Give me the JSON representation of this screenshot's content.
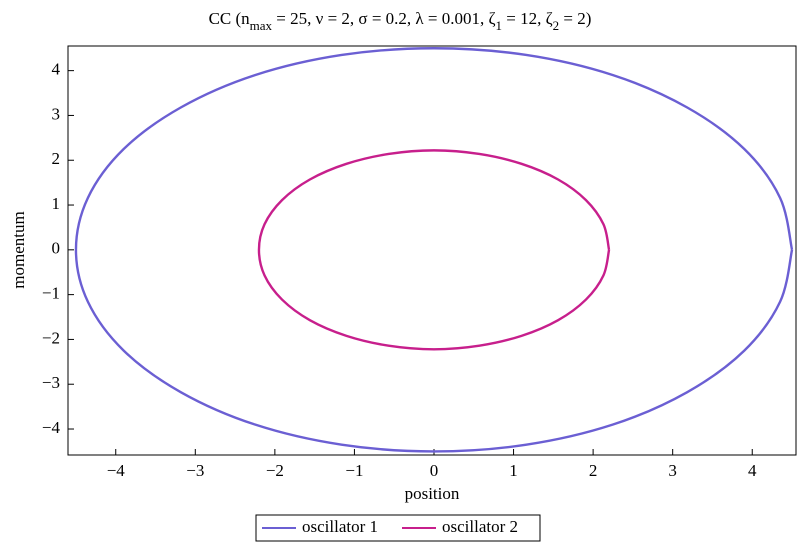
{
  "chart_data": {
    "type": "line",
    "title": [
      "CC  (n",
      "max",
      " = 25, ν = 2, σ = 0.2, λ = 0.001, ζ",
      "1",
      " = 12, ζ",
      "2",
      " = 2)"
    ],
    "x_label": "position",
    "y_label": "momentum",
    "xlim": [
      -4.6,
      4.55
    ],
    "ylim": [
      -4.58,
      4.55
    ],
    "xticks": [
      {
        "value": -4,
        "label": "−4"
      },
      {
        "value": -3,
        "label": "−3"
      },
      {
        "value": -2,
        "label": "−2"
      },
      {
        "value": -1,
        "label": "−1"
      },
      0,
      1,
      2,
      3,
      4
    ],
    "yticks": [
      {
        "value": -4,
        "label": "−4"
      },
      {
        "value": -3,
        "label": "−3"
      },
      {
        "value": -2,
        "label": "−2"
      },
      {
        "value": -1,
        "label": "−1"
      },
      0,
      1,
      2,
      3,
      4
    ],
    "legend": "bottom",
    "series": [
      {
        "name": "oscillator 1",
        "color": "#6b5fd3",
        "x": [
          4.5,
          4.35,
          3.9,
          3.18,
          2.25,
          1.16,
          0,
          -1.16,
          -2.25,
          -3.18,
          -3.9,
          -4.35,
          -4.5,
          -4.35,
          -3.9,
          -3.18,
          -2.25,
          -1.16,
          0,
          1.16,
          2.25,
          3.18,
          3.9,
          4.35,
          4.5
        ],
        "values": [
          0,
          1.16,
          2.25,
          3.18,
          3.9,
          4.35,
          4.5,
          4.35,
          3.9,
          3.18,
          2.25,
          1.16,
          0,
          -1.16,
          -2.25,
          -3.18,
          -3.9,
          -4.35,
          -4.5,
          -4.35,
          -3.9,
          -3.18,
          -2.25,
          -1.16,
          0
        ]
      },
      {
        "name": "oscillator 2",
        "color": "#c71f8c",
        "x": [
          2.2,
          2.13,
          1.91,
          1.56,
          1.1,
          0.57,
          0,
          -0.57,
          -1.1,
          -1.56,
          -1.91,
          -2.13,
          -2.2,
          -2.13,
          -1.91,
          -1.56,
          -1.1,
          -0.57,
          0,
          0.57,
          1.1,
          1.56,
          1.91,
          2.13,
          2.2
        ],
        "values": [
          0,
          0.57,
          1.11,
          1.57,
          1.92,
          2.14,
          2.22,
          2.14,
          1.92,
          1.57,
          1.11,
          0.57,
          0,
          -0.57,
          -1.11,
          -1.57,
          -1.92,
          -2.14,
          -2.22,
          -2.14,
          -1.92,
          -1.57,
          -1.11,
          -0.57,
          0
        ]
      }
    ]
  }
}
